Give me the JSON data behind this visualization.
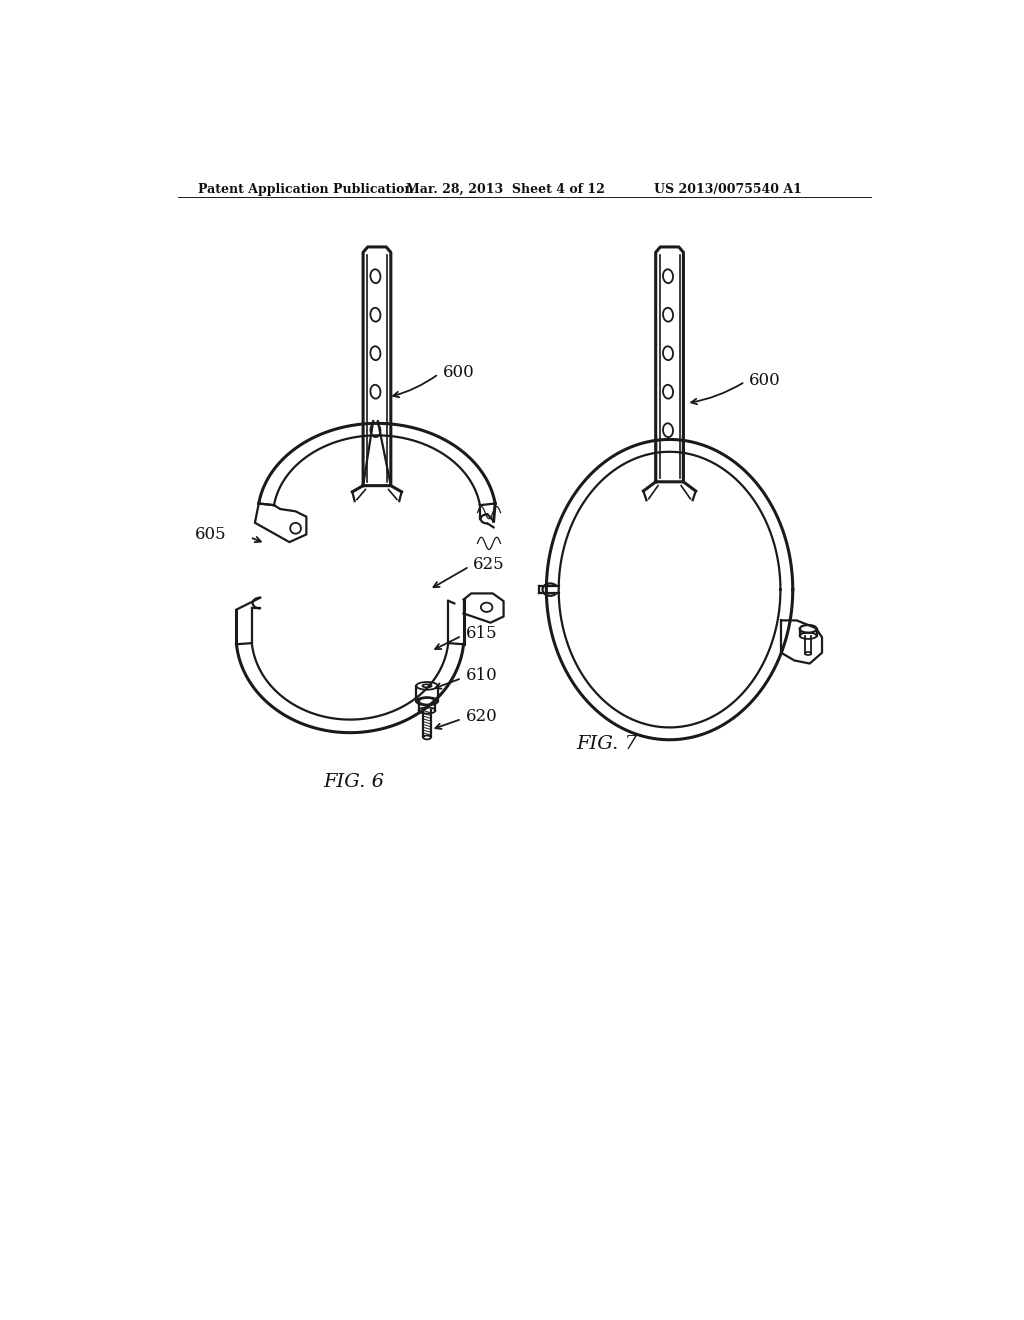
{
  "bg_color": "#ffffff",
  "line_color": "#1a1a1a",
  "text_color": "#111111",
  "header_left": "Patent Application Publication",
  "header_mid": "Mar. 28, 2013  Sheet 4 of 12",
  "header_right": "US 2013/0075540 A1",
  "fig6_label": "FIG. 6",
  "fig7_label": "FIG. 7",
  "label_600_left": "600",
  "label_600_right": "600",
  "label_605": "605",
  "label_610": "610",
  "label_615": "615",
  "label_620": "620",
  "label_625": "625"
}
